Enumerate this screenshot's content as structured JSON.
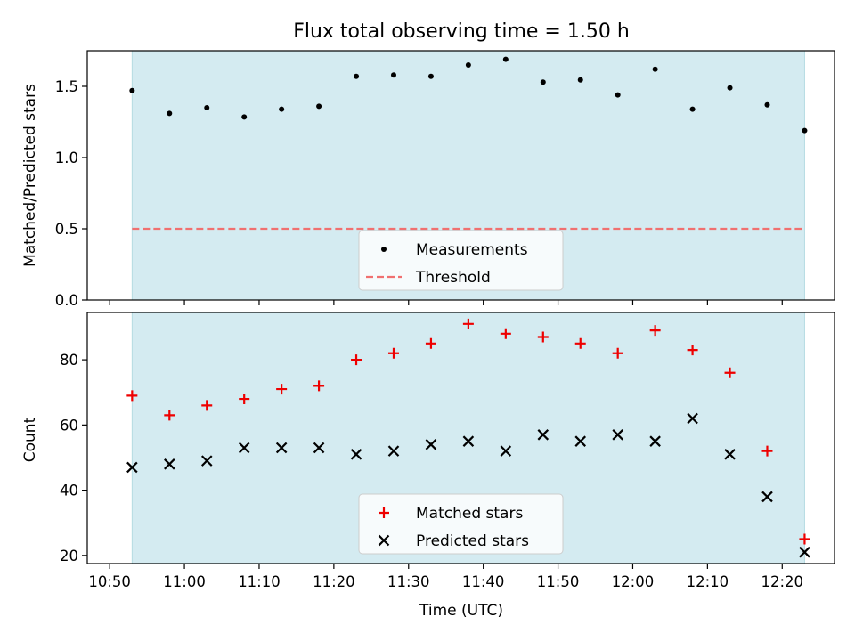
{
  "chart_data": {
    "type": "scatter",
    "title": "Flux total observing time = 1.50 h",
    "xlabel": "Time (UTC)",
    "x_ticks": [
      "10:50",
      "11:00",
      "11:10",
      "11:20",
      "11:30",
      "11:40",
      "11:50",
      "12:00",
      "12:10",
      "12:20"
    ],
    "times": [
      "10:53",
      "10:58",
      "11:03",
      "11:08",
      "11:13",
      "11:18",
      "11:23",
      "11:28",
      "11:33",
      "11:38",
      "11:43",
      "11:48",
      "11:53",
      "11:58",
      "12:03",
      "12:08",
      "12:13",
      "12:18",
      "12:23"
    ],
    "x_range": [
      "10:47",
      "12:27"
    ],
    "shaded_span": [
      "10:53",
      "12:23"
    ],
    "shade_color": "#d4ebf1",
    "top": {
      "ylabel": "Matched/Predicted stars",
      "ylim": [
        0,
        1.75
      ],
      "y_ticks": [
        "0.0",
        "0.5",
        "1.0",
        "1.5"
      ],
      "series": [
        {
          "name": "Measurements",
          "marker": "dot",
          "color": "#000000",
          "values": [
            1.47,
            1.31,
            1.35,
            1.285,
            1.34,
            1.36,
            1.57,
            1.58,
            1.57,
            1.65,
            1.69,
            1.53,
            1.545,
            1.44,
            1.62,
            1.34,
            1.49,
            1.37,
            1.19
          ]
        }
      ],
      "threshold": {
        "name": "Threshold",
        "value": 0.5,
        "color": "#f07070"
      },
      "legend": {
        "placement": "lower-center",
        "entries": [
          "Measurements",
          "Threshold"
        ]
      }
    },
    "bottom": {
      "ylabel": "Count",
      "ylim": [
        17.5,
        94.5
      ],
      "y_ticks": [
        "20",
        "40",
        "60",
        "80"
      ],
      "series": [
        {
          "name": "Matched stars",
          "marker": "plus",
          "color": "#ee0000",
          "values": [
            69,
            63,
            66,
            68,
            71,
            72,
            80,
            82,
            85,
            91,
            88,
            87,
            85,
            82,
            89,
            83,
            76,
            52,
            25
          ]
        },
        {
          "name": "Predicted stars",
          "marker": "x",
          "color": "#000000",
          "values": [
            47,
            48,
            49,
            53,
            53,
            53,
            51,
            52,
            54,
            55,
            52,
            57,
            55,
            57,
            55,
            62,
            51,
            38,
            21
          ]
        }
      ],
      "legend": {
        "placement": "lower-center",
        "entries": [
          "Matched stars",
          "Predicted stars"
        ]
      }
    }
  }
}
